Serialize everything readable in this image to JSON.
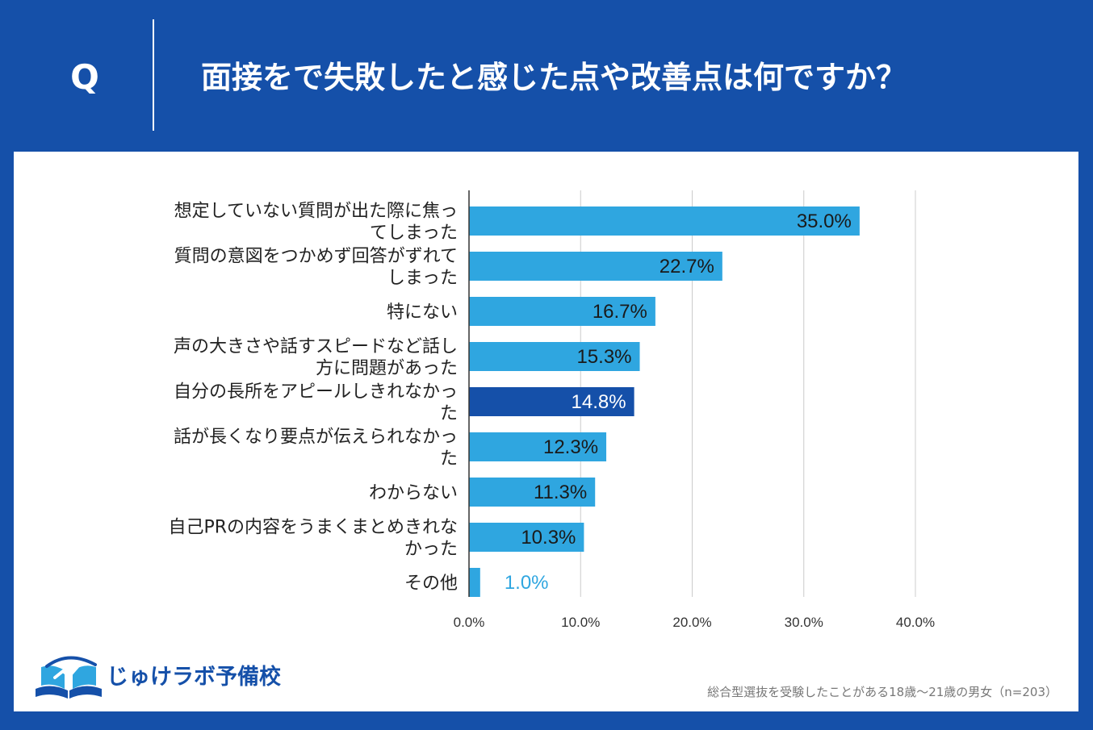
{
  "header": {
    "q_label": "Q",
    "question": "面接をで失敗したと感じた点や改善点は何ですか？"
  },
  "chart_data": {
    "type": "bar",
    "orientation": "horizontal",
    "categories": [
      [
        "想定していない質問が出た際に焦っ",
        "てしまった"
      ],
      [
        "質問の意図をつかめず回答がずれて",
        "しまった"
      ],
      [
        "特にない"
      ],
      [
        "声の大きさや話すスピードなど話し",
        "方に問題があった"
      ],
      [
        "自分の長所をアピールしきれなかっ",
        "た"
      ],
      [
        "話が長くなり要点が伝えられなかっ",
        "た"
      ],
      [
        "わからない"
      ],
      [
        "自己PRの内容をうまくまとめきれな",
        "かった"
      ],
      [
        "その他"
      ]
    ],
    "values": [
      35.0,
      22.7,
      16.7,
      15.3,
      14.8,
      12.3,
      11.3,
      10.3,
      1.0
    ],
    "data_labels": [
      "35.0%",
      "22.7%",
      "16.7%",
      "15.3%",
      "14.8%",
      "12.3%",
      "11.3%",
      "10.3%",
      "1.0%"
    ],
    "xlim": [
      0,
      40
    ],
    "ticks": [
      0,
      10,
      20,
      30,
      40
    ],
    "tick_labels": [
      "0.0%",
      "10.0%",
      "20.0%",
      "30.0%",
      "40.0%"
    ],
    "highlight_index": 4,
    "grid": "vertical",
    "colors": {
      "bar": "#2fa6e0",
      "highlight_bar": "#1550a9",
      "label_dark": "#1a1a1a",
      "label_light": "#ffffff",
      "label_outside": "#2fa6e0",
      "grid": "#cccccc",
      "axis": "#333333"
    }
  },
  "logo": {
    "text": "じゅけラボ予備校",
    "icon": "open-book-icon"
  },
  "footnote": "総合型選抜を受験したことがある18歳～21歳の男女（n=203）",
  "theme": {
    "background": "#1550a9",
    "card": "#ffffff"
  }
}
